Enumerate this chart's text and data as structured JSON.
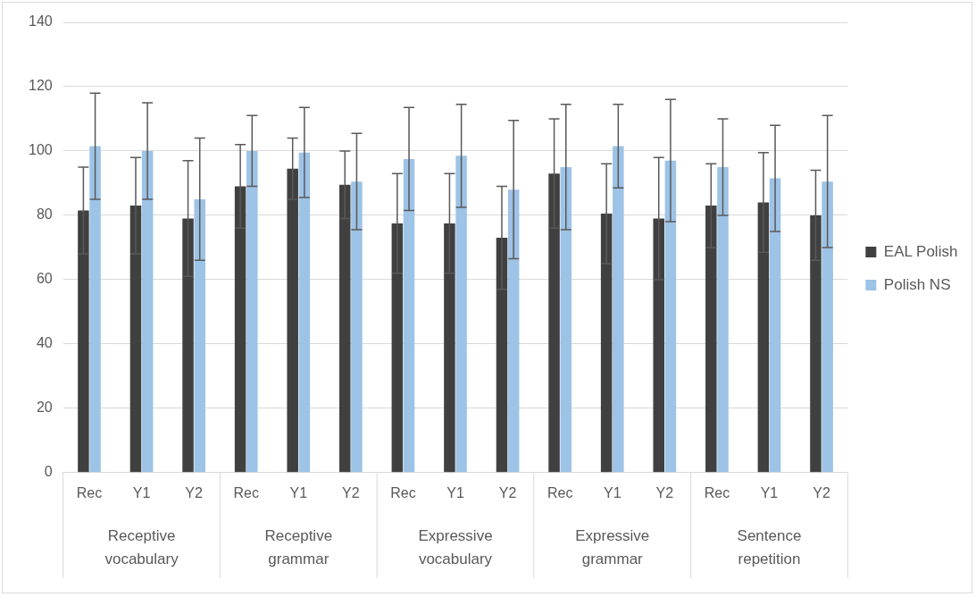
{
  "chart_data": {
    "type": "bar",
    "categories": [
      "Rec",
      "Y1",
      "Y2",
      "Rec",
      "Y1",
      "Y2",
      "Rec",
      "Y1",
      "Y2",
      "Rec",
      "Y1",
      "Y2",
      "Rec",
      "Y1",
      "Y2"
    ],
    "annotations": [
      "Receptive vocabulary",
      "Receptive grammar",
      "Expressive vocabulary",
      "Expressive grammar",
      "Sentence repetition"
    ],
    "series": [
      {
        "name": "EAL Polish",
        "color": "#404040",
        "values": [
          81.5,
          83,
          79,
          89,
          94.5,
          89.5,
          77.5,
          77.5,
          73,
          93,
          80.5,
          79,
          83,
          84,
          80
        ],
        "errors": [
          13.5,
          15,
          18,
          13,
          9.5,
          10.5,
          15.5,
          15.5,
          16,
          17,
          15.5,
          19,
          13,
          15.5,
          14
        ]
      },
      {
        "name": "Polish NS",
        "color": "#9dc3e6",
        "values": [
          101.5,
          100,
          85,
          100,
          99.5,
          90.5,
          97.5,
          98.5,
          88,
          95,
          101.5,
          97,
          95,
          91.5,
          90.5
        ],
        "errors": [
          16.5,
          15,
          19,
          11,
          14,
          15,
          16,
          16,
          21.5,
          19.5,
          13,
          19,
          15,
          16.5,
          20.5
        ]
      }
    ],
    "ylim": [
      0,
      140
    ],
    "yticks": [
      0,
      20,
      40,
      60,
      80,
      100,
      120,
      140
    ],
    "grid": "y",
    "legend": "right"
  }
}
